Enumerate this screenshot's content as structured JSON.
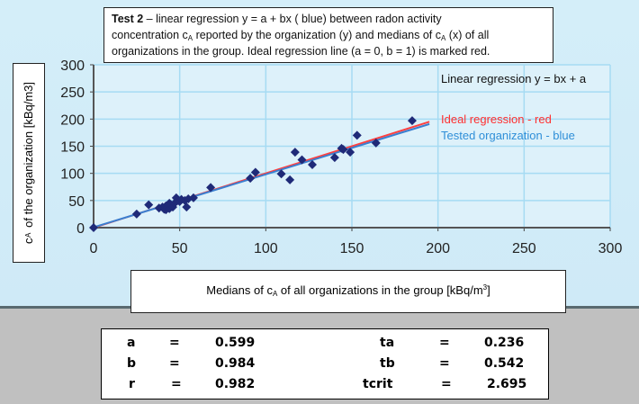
{
  "chart_data": {
    "type": "scatter",
    "title_bold": "Test 2",
    "title_l1": " – linear regression y = a + bx ( blue) between radon activity",
    "title_l2a": "concentration c",
    "title_l2b": " reported by the organization (y) and medians of c",
    "title_l2c": " (x) of all",
    "title_l3": "organizations in the group. Ideal regression line (a = 0, b = 1) is marked red.",
    "sub_A": "A",
    "ylabel_a": "c",
    "ylabel_b": " of the organization [kBq/m3]",
    "xlabel_a": "Medians of c",
    "xlabel_b": " of all organizations in the group [kBq/m",
    "xlabel_sup": "3",
    "xlabel_c": "]",
    "xlim": [
      0,
      300
    ],
    "ylim": [
      0,
      300
    ],
    "xticks": [
      "0",
      "50",
      "100",
      "150",
      "200",
      "250",
      "300"
    ],
    "yticks": [
      "0",
      "50",
      "100",
      "150",
      "200",
      "250",
      "300"
    ],
    "grid": true,
    "legend": {
      "header": "Linear regression y = bx + a",
      "ideal": "Ideal regression - red",
      "tested": "Tested organization - blue"
    },
    "colors": {
      "points": "#1f2a78",
      "ideal": "#ff4040",
      "tested": "#3a7fd0",
      "grid": "#a6dbf3",
      "legend_tested": "#2f8fd8"
    },
    "lines": {
      "ideal": {
        "a": 0,
        "b": 1,
        "xmax": 195
      },
      "tested": {
        "a": 0.599,
        "b": 0.984,
        "xmax": 195
      }
    },
    "points": [
      [
        0,
        0
      ],
      [
        25,
        25
      ],
      [
        32,
        42
      ],
      [
        38,
        36
      ],
      [
        40,
        38
      ],
      [
        41,
        34
      ],
      [
        42,
        40
      ],
      [
        42,
        33
      ],
      [
        43,
        37
      ],
      [
        44,
        35
      ],
      [
        44,
        45
      ],
      [
        45,
        42
      ],
      [
        46,
        38
      ],
      [
        47,
        45
      ],
      [
        48,
        55
      ],
      [
        49,
        50
      ],
      [
        50,
        48
      ],
      [
        51,
        52
      ],
      [
        53,
        50
      ],
      [
        54,
        38
      ],
      [
        55,
        53
      ],
      [
        58,
        55
      ],
      [
        68,
        74
      ],
      [
        91,
        91
      ],
      [
        94,
        102
      ],
      [
        109,
        99
      ],
      [
        114,
        88
      ],
      [
        117,
        139
      ],
      [
        121,
        125
      ],
      [
        127,
        116
      ],
      [
        140,
        129
      ],
      [
        144,
        146
      ],
      [
        145,
        144
      ],
      [
        149,
        139
      ],
      [
        153,
        170
      ],
      [
        164,
        156
      ],
      [
        185,
        197
      ]
    ]
  },
  "stats": [
    {
      "k": "a",
      "eq": "=",
      "v": "0.599"
    },
    {
      "k": "b",
      "eq": "=",
      "v": "0.984"
    },
    {
      "k": "r",
      "eq": "=",
      "v": "0.982"
    },
    {
      "k": "ta",
      "eq": "=",
      "v": "0.236"
    },
    {
      "k": "tb",
      "eq": "=",
      "v": "0.542"
    },
    {
      "k": "tcrit",
      "eq": "=",
      "v": "2.695"
    }
  ]
}
